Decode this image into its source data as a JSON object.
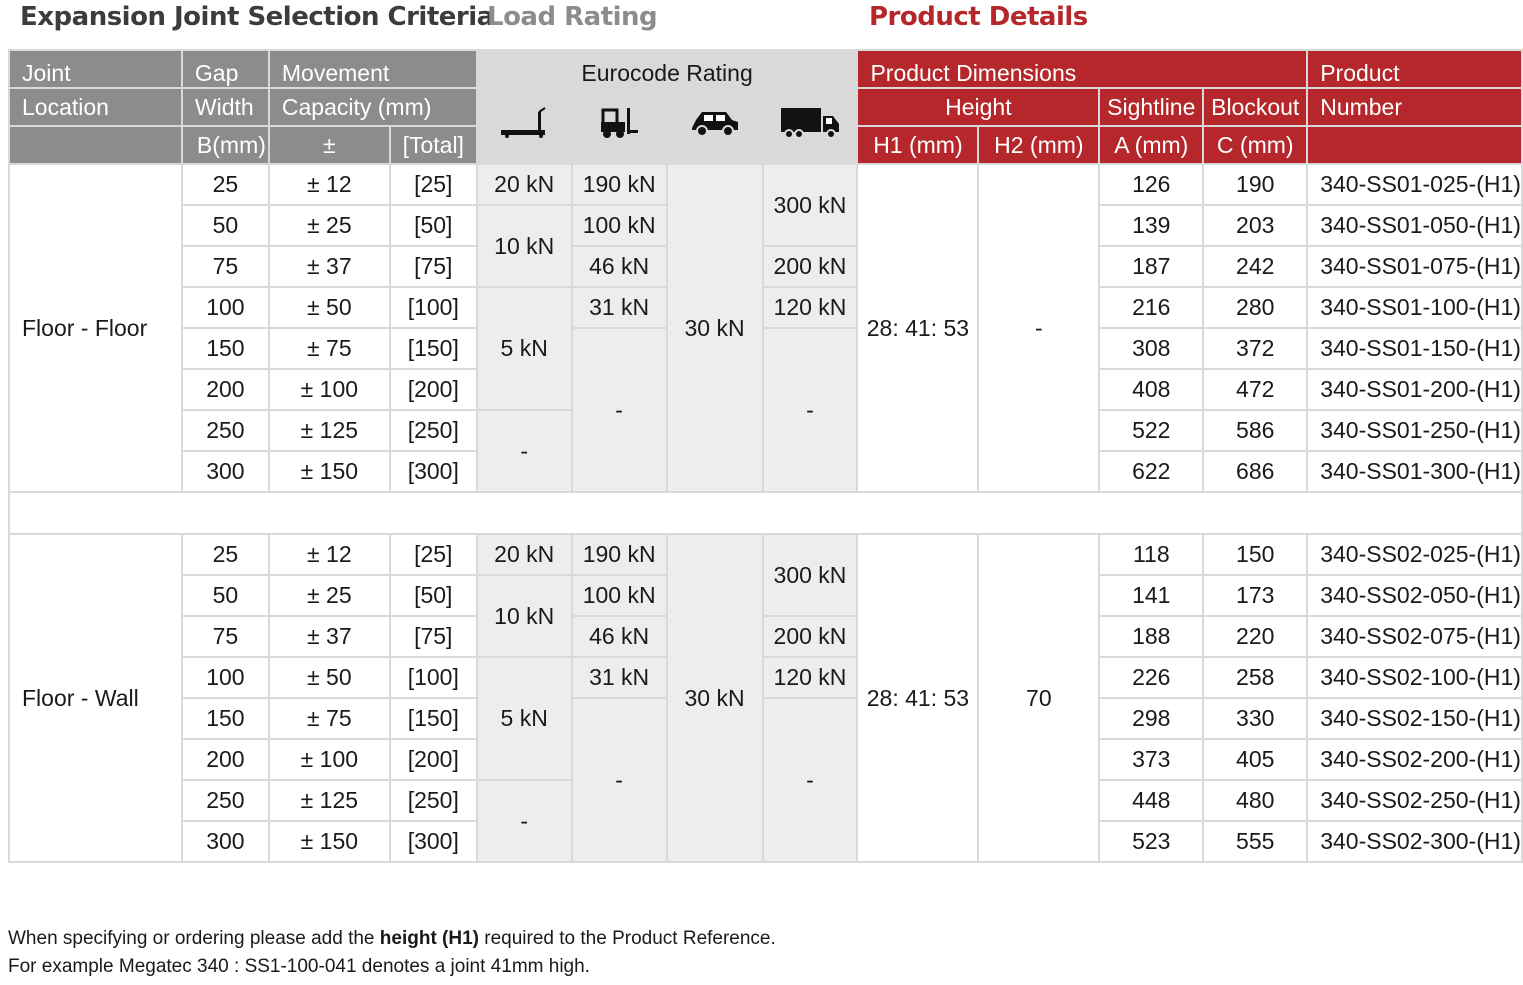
{
  "headings": {
    "selection": "Expansion Joint Selection Criteria",
    "load": "Load Rating",
    "product": "Product Details"
  },
  "header": {
    "joint": "Joint",
    "location": "Location",
    "gap": "Gap",
    "width": "Width",
    "b_mm": "B(mm)",
    "movement": "Movement",
    "capacity": "Capacity (mm)",
    "pm": "±",
    "total": "[Total]",
    "eurocode": "Eurocode Rating",
    "product_dimensions": "Product Dimensions",
    "height": "Height",
    "h1": "H1 (mm)",
    "h2": "H2 (mm)",
    "sightline": "Sightline",
    "a_mm": "A (mm)",
    "blockout": "Blockout",
    "c_mm": "C (mm)",
    "product": "Product",
    "number": "Number",
    "icons": [
      "pallet-truck-icon",
      "forklift-icon",
      "car-icon",
      "lorry-icon"
    ]
  },
  "groups": [
    {
      "location": "Floor - Floor",
      "pallet": [
        "20 kN",
        "10 kN",
        "5 kN",
        "-"
      ],
      "forklift": [
        "190 kN",
        "100 kN",
        "46 kN",
        "31 kN",
        "-"
      ],
      "car": "30 kN",
      "truck": [
        "300 kN",
        "200 kN",
        "120 kN",
        "-"
      ],
      "h1": "28: 41: 53",
      "h2": "-",
      "rows": [
        {
          "gap": "25",
          "pm": "± 12",
          "total": "[25]",
          "a": "126",
          "c": "190",
          "pn": "340-SS01-025-(H1)"
        },
        {
          "gap": "50",
          "pm": "± 25",
          "total": "[50]",
          "a": "139",
          "c": "203",
          "pn": "340-SS01-050-(H1)"
        },
        {
          "gap": "75",
          "pm": "± 37",
          "total": "[75]",
          "a": "187",
          "c": "242",
          "pn": "340-SS01-075-(H1)"
        },
        {
          "gap": "100",
          "pm": "± 50",
          "total": "[100]",
          "a": "216",
          "c": "280",
          "pn": "340-SS01-100-(H1)"
        },
        {
          "gap": "150",
          "pm": "± 75",
          "total": "[150]",
          "a": "308",
          "c": "372",
          "pn": "340-SS01-150-(H1)"
        },
        {
          "gap": "200",
          "pm": "± 100",
          "total": "[200]",
          "a": "408",
          "c": "472",
          "pn": "340-SS01-200-(H1)"
        },
        {
          "gap": "250",
          "pm": "± 125",
          "total": "[250]",
          "a": "522",
          "c": "586",
          "pn": "340-SS01-250-(H1)"
        },
        {
          "gap": "300",
          "pm": "± 150",
          "total": "[300]",
          "a": "622",
          "c": "686",
          "pn": "340-SS01-300-(H1)"
        }
      ]
    },
    {
      "location": "Floor - Wall",
      "pallet": [
        "20 kN",
        "10 kN",
        "5 kN",
        "-"
      ],
      "forklift": [
        "190 kN",
        "100 kN",
        "46 kN",
        "31 kN",
        "-"
      ],
      "car": "30 kN",
      "truck": [
        "300 kN",
        "200 kN",
        "120 kN",
        "-"
      ],
      "h1": "28: 41: 53",
      "h2": "70",
      "rows": [
        {
          "gap": "25",
          "pm": "± 12",
          "total": "[25]",
          "a": "118",
          "c": "150",
          "pn": "340-SS02-025-(H1)"
        },
        {
          "gap": "50",
          "pm": "± 25",
          "total": "[50]",
          "a": "141",
          "c": "173",
          "pn": "340-SS02-050-(H1)"
        },
        {
          "gap": "75",
          "pm": "± 37",
          "total": "[75]",
          "a": "188",
          "c": "220",
          "pn": "340-SS02-075-(H1)"
        },
        {
          "gap": "100",
          "pm": "± 50",
          "total": "[100]",
          "a": "226",
          "c": "258",
          "pn": "340-SS02-100-(H1)"
        },
        {
          "gap": "150",
          "pm": "± 75",
          "total": "[150]",
          "a": "298",
          "c": "330",
          "pn": "340-SS02-150-(H1)"
        },
        {
          "gap": "200",
          "pm": "± 100",
          "total": "[200]",
          "a": "373",
          "c": "405",
          "pn": "340-SS02-200-(H1)"
        },
        {
          "gap": "250",
          "pm": "± 125",
          "total": "[250]",
          "a": "448",
          "c": "480",
          "pn": "340-SS02-250-(H1)"
        },
        {
          "gap": "300",
          "pm": "± 150",
          "total": "[300]",
          "a": "523",
          "c": "555",
          "pn": "340-SS02-300-(H1)"
        }
      ]
    }
  ],
  "notes": {
    "line1_a": "When specifying or ordering please add the ",
    "line1_b": "height (H1)",
    "line1_c": " required to the Product Reference.",
    "line2": "For example Megatec 340 : SS1-100-041 denotes a joint 41mm high."
  },
  "colors": {
    "grey_header": "#8c8c8c",
    "light_header": "#d9d9d9",
    "red_header": "#b5272b",
    "eurocode_fill": "#ededed",
    "border": "#d9d9d9"
  }
}
